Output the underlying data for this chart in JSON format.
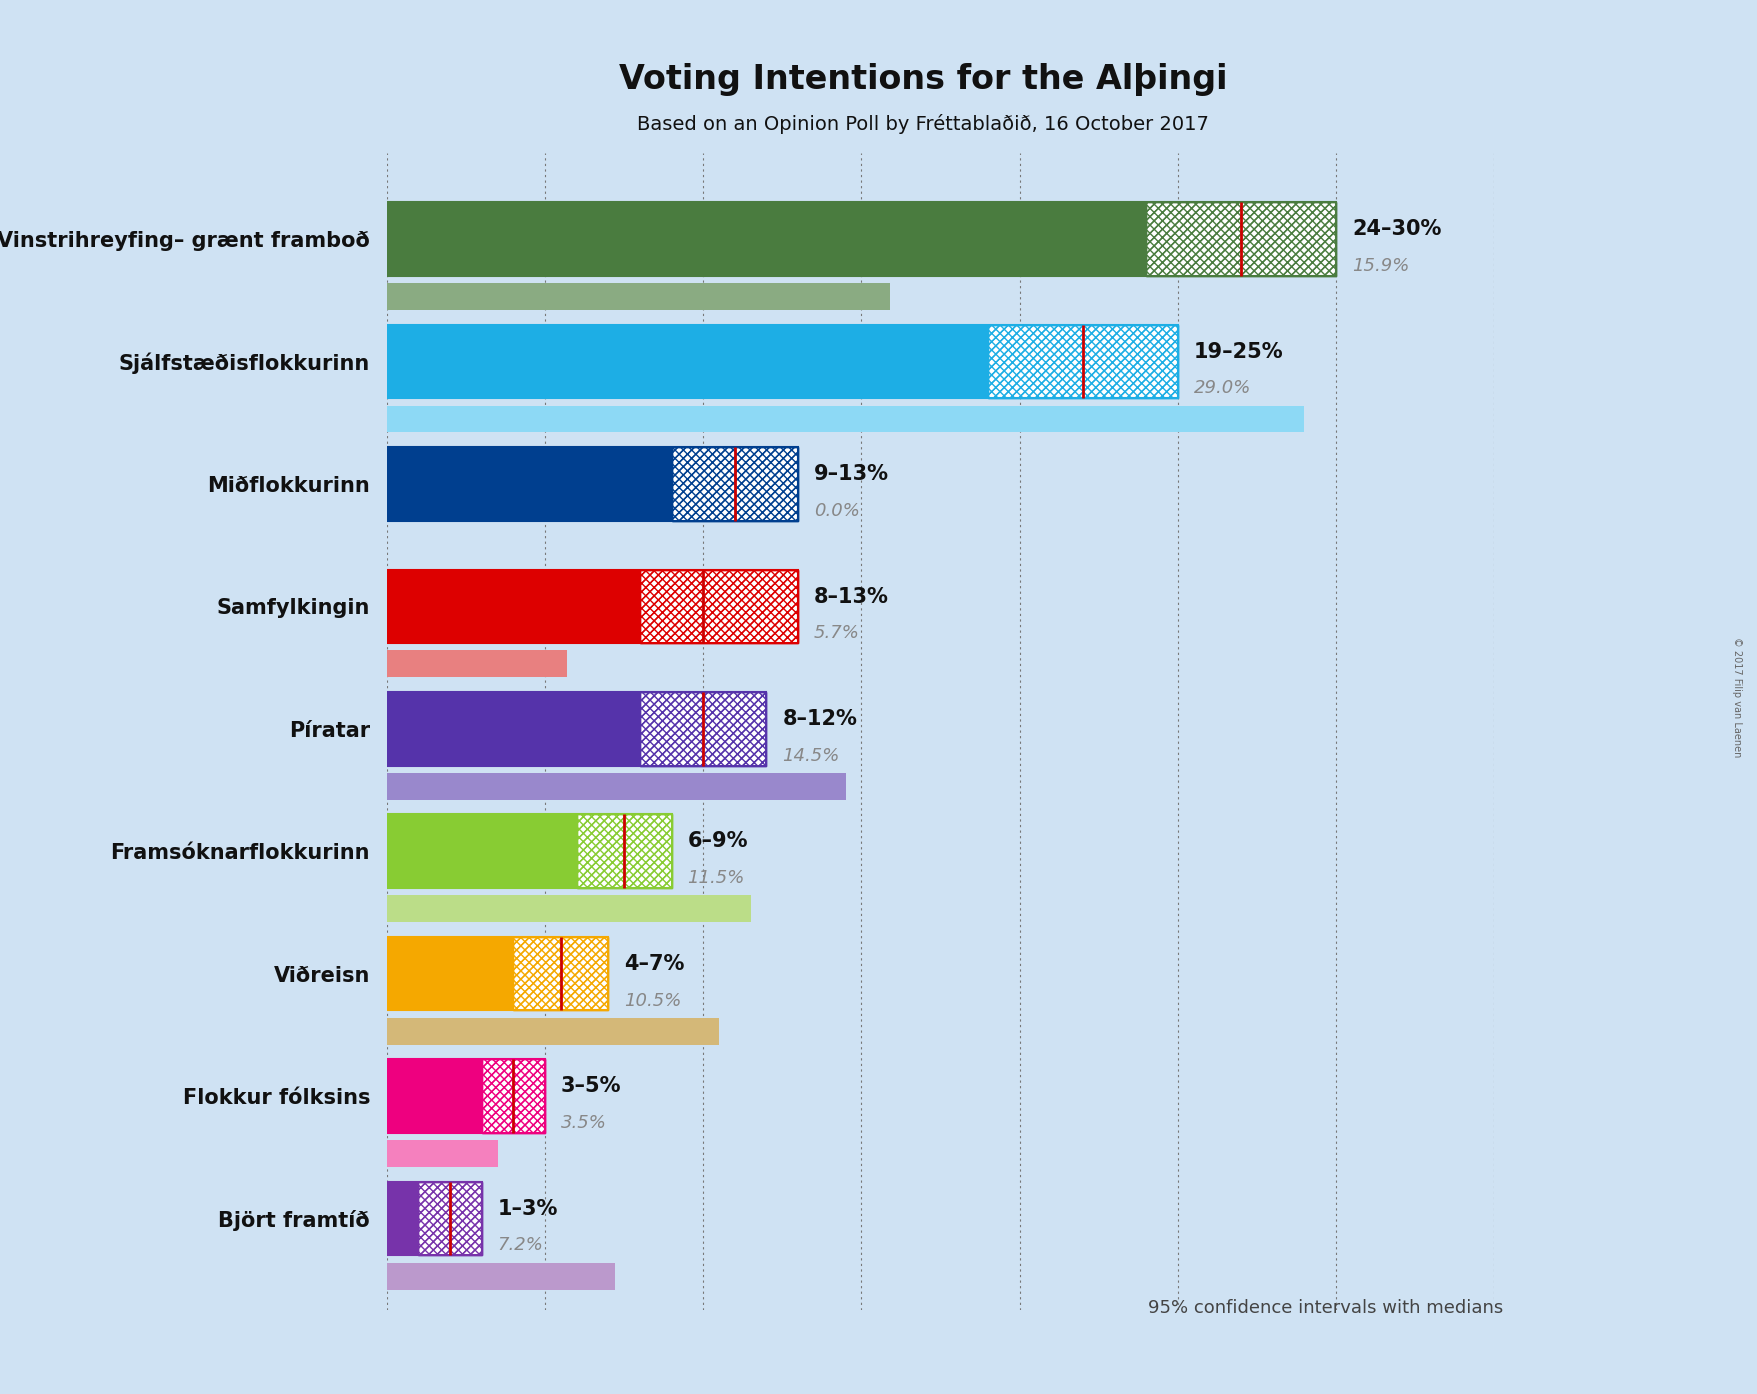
{
  "title": "Voting Intentions for the Alþingi",
  "subtitle": "Based on an Opinion Poll by Fréttablaðið, 16 October 2017",
  "copyright": "© 2017 Filip van Laenen",
  "background_color": "#cfe2f3",
  "parties": [
    {
      "name": "Vinstrihreyfing– grænt framboð",
      "low": 24,
      "high": 30,
      "median": 27,
      "previous": 15.9,
      "color": "#4a7c3f",
      "light_color": "#8aab82",
      "label": "24–30%",
      "prev_label": "15.9%"
    },
    {
      "name": "Sjálfstæðisflokkurinn",
      "low": 19,
      "high": 25,
      "median": 22,
      "previous": 29.0,
      "color": "#1daee5",
      "light_color": "#8dd9f5",
      "label": "19–25%",
      "prev_label": "29.0%"
    },
    {
      "name": "Miðflokkurinn",
      "low": 9,
      "high": 13,
      "median": 11,
      "previous": 0.0,
      "color": "#003f8f",
      "light_color": "#6680b0",
      "label": "9–13%",
      "prev_label": "0.0%"
    },
    {
      "name": "Samfylkingin",
      "low": 8,
      "high": 13,
      "median": 10,
      "previous": 5.7,
      "color": "#dd0000",
      "light_color": "#e88080",
      "label": "8–13%",
      "prev_label": "5.7%"
    },
    {
      "name": "Píratar",
      "low": 8,
      "high": 12,
      "median": 10,
      "previous": 14.5,
      "color": "#5533aa",
      "light_color": "#9988cc",
      "label": "8–12%",
      "prev_label": "14.5%"
    },
    {
      "name": "Framsóknarflokkurinn",
      "low": 6,
      "high": 9,
      "median": 7.5,
      "previous": 11.5,
      "color": "#88cc33",
      "light_color": "#bbdd88",
      "label": "6–9%",
      "prev_label": "11.5%"
    },
    {
      "name": "Viðreisn",
      "low": 4,
      "high": 7,
      "median": 5.5,
      "previous": 10.5,
      "color": "#f5a800",
      "light_color": "#d4b878",
      "label": "4–7%",
      "prev_label": "10.5%"
    },
    {
      "name": "Flokkur fólksins",
      "low": 3,
      "high": 5,
      "median": 4,
      "previous": 3.5,
      "color": "#ee007f",
      "light_color": "#f580be",
      "label": "3–5%",
      "prev_label": "3.5%"
    },
    {
      "name": "Björt framtíð",
      "low": 1,
      "high": 3,
      "median": 2,
      "previous": 7.2,
      "color": "#7733aa",
      "light_color": "#bb99cc",
      "label": "1–3%",
      "prev_label": "7.2%"
    }
  ],
  "xlim": [
    0,
    35
  ],
  "grid_ticks": [
    0,
    5,
    10,
    15,
    20,
    25,
    30,
    35
  ],
  "bar_height": 0.6,
  "prev_bar_height": 0.22,
  "note": "95% confidence intervals with medians"
}
